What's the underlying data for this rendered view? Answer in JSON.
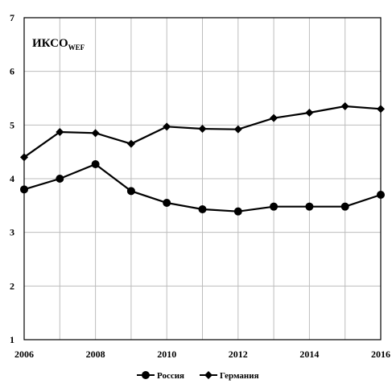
{
  "chart_data": {
    "type": "line",
    "title": "ИКСО",
    "title_subscript": "WEF",
    "x": [
      2006,
      2007,
      2008,
      2009,
      2010,
      2011,
      2012,
      2013,
      2014,
      2015,
      2016
    ],
    "xlim": [
      2006,
      2016
    ],
    "ylim": [
      1,
      7
    ],
    "x_ticks": [
      "2006",
      "2008",
      "2010",
      "2012",
      "2014",
      "2016"
    ],
    "y_ticks": [
      "1",
      "2",
      "3",
      "4",
      "5",
      "6",
      "7"
    ],
    "grid": true,
    "legend_position": "bottom-center",
    "series": [
      {
        "name": "Россия",
        "marker": "circle",
        "color": "#000000",
        "values": [
          3.8,
          4.0,
          4.27,
          3.77,
          3.55,
          3.43,
          3.39,
          3.48,
          3.48,
          3.48,
          3.7
        ]
      },
      {
        "name": "Германия",
        "marker": "diamond",
        "color": "#000000",
        "values": [
          4.4,
          4.87,
          4.85,
          4.65,
          4.97,
          4.93,
          4.92,
          5.13,
          5.23,
          5.35,
          5.3
        ]
      }
    ]
  }
}
